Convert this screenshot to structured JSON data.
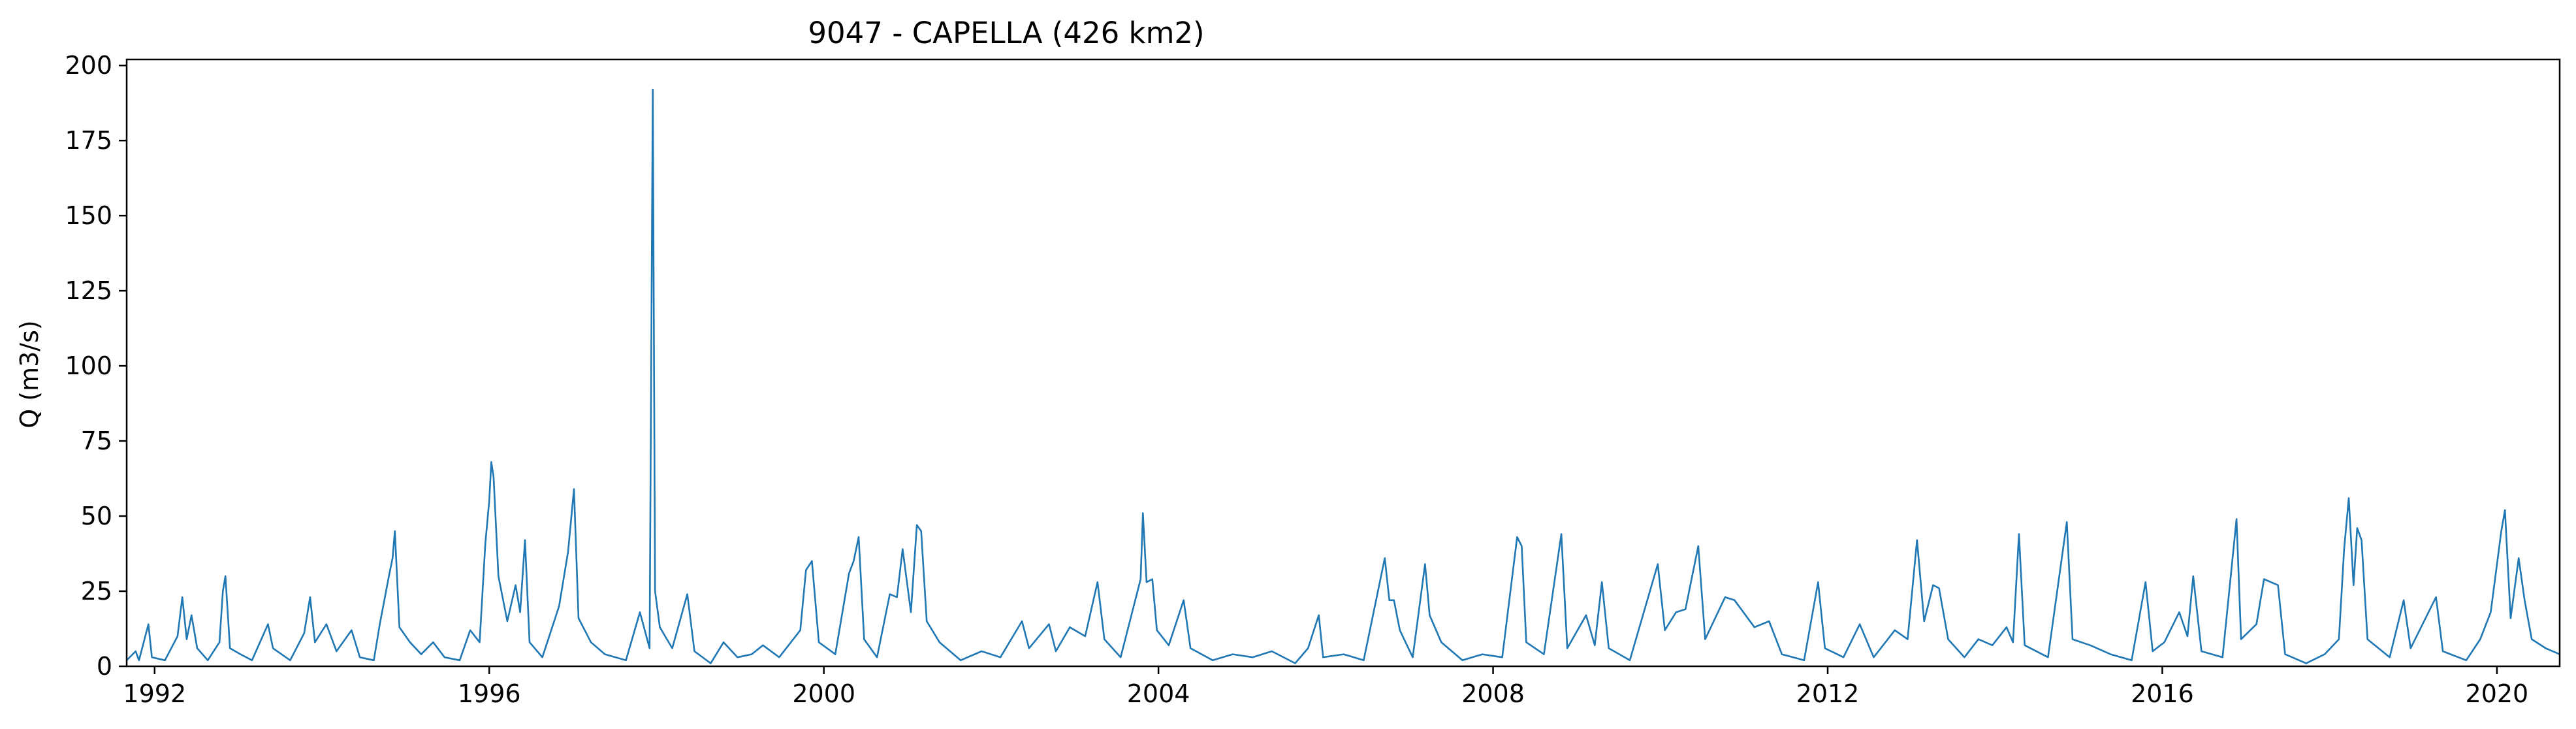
{
  "chart_data": {
    "type": "line",
    "title": "9047 - CAPELLA (426 km2)",
    "xlabel": "",
    "ylabel": "Q (m3/s)",
    "xlim": [
      "1991-09-01",
      "2020-10-01"
    ],
    "ylim": [
      0,
      202
    ],
    "x_ticks": [
      "1992",
      "1996",
      "2000",
      "2004",
      "2008",
      "2012",
      "2016",
      "2020"
    ],
    "y_ticks": [
      "0",
      "25",
      "50",
      "75",
      "100",
      "125",
      "150",
      "175",
      "200"
    ],
    "grid": false,
    "legend": "none",
    "series_color": "#1f77b4",
    "series": [
      {
        "values_note_free": true,
        "points": [
          [
            "1991-09-01",
            2
          ],
          [
            "1991-10-10",
            5
          ],
          [
            "1991-10-25",
            2
          ],
          [
            "1991-12-05",
            14
          ],
          [
            "1991-12-20",
            3
          ],
          [
            "1992-02-15",
            2
          ],
          [
            "1992-04-10",
            10
          ],
          [
            "1992-05-01",
            23
          ],
          [
            "1992-05-20",
            9
          ],
          [
            "1992-06-10",
            17
          ],
          [
            "1992-07-05",
            6
          ],
          [
            "1992-08-20",
            2
          ],
          [
            "1992-10-10",
            8
          ],
          [
            "1992-10-25",
            25
          ],
          [
            "1992-11-05",
            30
          ],
          [
            "1992-11-25",
            6
          ],
          [
            "1993-01-10",
            4
          ],
          [
            "1993-03-01",
            2
          ],
          [
            "1993-05-10",
            14
          ],
          [
            "1993-06-01",
            6
          ],
          [
            "1993-08-15",
            2
          ],
          [
            "1993-10-15",
            11
          ],
          [
            "1993-11-10",
            23
          ],
          [
            "1993-12-01",
            8
          ],
          [
            "1994-01-20",
            14
          ],
          [
            "1994-03-05",
            5
          ],
          [
            "1994-05-10",
            12
          ],
          [
            "1994-06-15",
            3
          ],
          [
            "1994-08-15",
            2
          ],
          [
            "1994-09-10",
            14
          ],
          [
            "1994-10-20",
            30
          ],
          [
            "1994-11-05",
            36
          ],
          [
            "1994-11-15",
            45
          ],
          [
            "1994-12-05",
            13
          ],
          [
            "1995-01-20",
            8
          ],
          [
            "1995-03-10",
            4
          ],
          [
            "1995-05-01",
            8
          ],
          [
            "1995-06-20",
            3
          ],
          [
            "1995-08-25",
            2
          ],
          [
            "1995-10-10",
            12
          ],
          [
            "1995-11-20",
            8
          ],
          [
            "1995-12-15",
            41
          ],
          [
            "1996-01-01",
            55
          ],
          [
            "1996-01-10",
            68
          ],
          [
            "1996-01-20",
            63
          ],
          [
            "1996-02-10",
            30
          ],
          [
            "1996-03-20",
            15
          ],
          [
            "1996-04-25",
            27
          ],
          [
            "1996-05-15",
            18
          ],
          [
            "1996-06-05",
            42
          ],
          [
            "1996-06-25",
            8
          ],
          [
            "1996-08-20",
            3
          ],
          [
            "1996-11-01",
            20
          ],
          [
            "1996-12-10",
            38
          ],
          [
            "1997-01-05",
            59
          ],
          [
            "1997-01-25",
            16
          ],
          [
            "1997-03-20",
            8
          ],
          [
            "1997-05-20",
            4
          ],
          [
            "1997-08-20",
            2
          ],
          [
            "1997-10-20",
            18
          ],
          [
            "1997-12-01",
            6
          ],
          [
            "1997-12-15",
            192
          ],
          [
            "1997-12-25",
            25
          ],
          [
            "1998-01-15",
            13
          ],
          [
            "1998-03-10",
            6
          ],
          [
            "1998-05-15",
            24
          ],
          [
            "1998-06-15",
            5
          ],
          [
            "1998-08-25",
            1
          ],
          [
            "1998-10-20",
            8
          ],
          [
            "1998-12-20",
            3
          ],
          [
            "1999-02-20",
            4
          ],
          [
            "1999-04-10",
            7
          ],
          [
            "1999-06-20",
            3
          ],
          [
            "1999-09-20",
            12
          ],
          [
            "1999-10-15",
            32
          ],
          [
            "1999-11-10",
            35
          ],
          [
            "1999-12-10",
            8
          ],
          [
            "2000-02-20",
            4
          ],
          [
            "2000-04-20",
            31
          ],
          [
            "2000-05-10",
            35
          ],
          [
            "2000-06-01",
            43
          ],
          [
            "2000-06-25",
            9
          ],
          [
            "2000-08-20",
            3
          ],
          [
            "2000-10-15",
            24
          ],
          [
            "2000-11-15",
            23
          ],
          [
            "2000-12-10",
            39
          ],
          [
            "2001-01-15",
            18
          ],
          [
            "2001-02-10",
            47
          ],
          [
            "2001-03-01",
            45
          ],
          [
            "2001-03-25",
            15
          ],
          [
            "2001-05-20",
            8
          ],
          [
            "2001-08-20",
            2
          ],
          [
            "2001-11-20",
            5
          ],
          [
            "2002-02-10",
            3
          ],
          [
            "2002-05-15",
            15
          ],
          [
            "2002-06-15",
            6
          ],
          [
            "2002-09-10",
            14
          ],
          [
            "2002-10-10",
            5
          ],
          [
            "2002-12-10",
            13
          ],
          [
            "2003-02-15",
            10
          ],
          [
            "2003-04-10",
            28
          ],
          [
            "2003-05-10",
            9
          ],
          [
            "2003-07-20",
            3
          ],
          [
            "2003-10-15",
            29
          ],
          [
            "2003-10-25",
            51
          ],
          [
            "2003-11-10",
            28
          ],
          [
            "2003-12-05",
            29
          ],
          [
            "2003-12-25",
            12
          ],
          [
            "2004-02-15",
            7
          ],
          [
            "2004-04-20",
            22
          ],
          [
            "2004-05-20",
            6
          ],
          [
            "2004-08-25",
            2
          ],
          [
            "2004-11-20",
            4
          ],
          [
            "2005-02-15",
            3
          ],
          [
            "2005-05-10",
            5
          ],
          [
            "2005-08-20",
            1
          ],
          [
            "2005-10-15",
            6
          ],
          [
            "2005-12-01",
            17
          ],
          [
            "2005-12-20",
            3
          ],
          [
            "2006-03-20",
            4
          ],
          [
            "2006-06-15",
            2
          ],
          [
            "2006-09-15",
            36
          ],
          [
            "2006-10-05",
            22
          ],
          [
            "2006-10-25",
            22
          ],
          [
            "2006-11-20",
            12
          ],
          [
            "2007-01-15",
            3
          ],
          [
            "2007-03-10",
            34
          ],
          [
            "2007-03-30",
            17
          ],
          [
            "2007-05-20",
            8
          ],
          [
            "2007-08-20",
            2
          ],
          [
            "2007-11-15",
            4
          ],
          [
            "2008-02-10",
            3
          ],
          [
            "2008-04-15",
            43
          ],
          [
            "2008-05-05",
            40
          ],
          [
            "2008-05-25",
            8
          ],
          [
            "2008-08-10",
            4
          ],
          [
            "2008-10-25",
            44
          ],
          [
            "2008-11-20",
            6
          ],
          [
            "2009-02-10",
            17
          ],
          [
            "2009-03-20",
            7
          ],
          [
            "2009-04-20",
            28
          ],
          [
            "2009-05-20",
            6
          ],
          [
            "2009-08-20",
            2
          ],
          [
            "2009-12-20",
            34
          ],
          [
            "2010-01-20",
            12
          ],
          [
            "2010-03-10",
            18
          ],
          [
            "2010-04-20",
            19
          ],
          [
            "2010-06-15",
            40
          ],
          [
            "2010-07-15",
            9
          ],
          [
            "2010-10-10",
            23
          ],
          [
            "2010-11-20",
            22
          ],
          [
            "2011-02-15",
            13
          ],
          [
            "2011-04-20",
            15
          ],
          [
            "2011-06-15",
            4
          ],
          [
            "2011-09-20",
            2
          ],
          [
            "2011-11-20",
            28
          ],
          [
            "2011-12-20",
            6
          ],
          [
            "2012-03-10",
            3
          ],
          [
            "2012-05-20",
            14
          ],
          [
            "2012-07-20",
            3
          ],
          [
            "2012-10-20",
            12
          ],
          [
            "2012-12-15",
            9
          ],
          [
            "2013-01-25",
            42
          ],
          [
            "2013-02-25",
            15
          ],
          [
            "2013-04-05",
            27
          ],
          [
            "2013-05-01",
            26
          ],
          [
            "2013-06-10",
            9
          ],
          [
            "2013-08-20",
            3
          ],
          [
            "2013-10-20",
            9
          ],
          [
            "2013-12-20",
            7
          ],
          [
            "2014-02-20",
            13
          ],
          [
            "2014-03-20",
            8
          ],
          [
            "2014-04-15",
            44
          ],
          [
            "2014-05-10",
            7
          ],
          [
            "2014-08-20",
            3
          ],
          [
            "2014-11-10",
            48
          ],
          [
            "2014-12-05",
            9
          ],
          [
            "2015-02-20",
            7
          ],
          [
            "2015-05-20",
            4
          ],
          [
            "2015-08-20",
            2
          ],
          [
            "2015-10-20",
            28
          ],
          [
            "2015-11-20",
            5
          ],
          [
            "2016-01-10",
            8
          ],
          [
            "2016-03-15",
            18
          ],
          [
            "2016-04-20",
            10
          ],
          [
            "2016-05-15",
            30
          ],
          [
            "2016-06-20",
            5
          ],
          [
            "2016-09-20",
            3
          ],
          [
            "2016-11-20",
            49
          ],
          [
            "2016-12-10",
            9
          ],
          [
            "2017-02-15",
            14
          ],
          [
            "2017-03-20",
            29
          ],
          [
            "2017-05-20",
            27
          ],
          [
            "2017-06-20",
            4
          ],
          [
            "2017-09-20",
            1
          ],
          [
            "2017-12-10",
            4
          ],
          [
            "2018-02-10",
            9
          ],
          [
            "2018-03-05",
            39
          ],
          [
            "2018-03-25",
            56
          ],
          [
            "2018-04-15",
            27
          ],
          [
            "2018-05-01",
            46
          ],
          [
            "2018-05-20",
            42
          ],
          [
            "2018-06-15",
            9
          ],
          [
            "2018-09-20",
            3
          ],
          [
            "2018-11-20",
            22
          ],
          [
            "2018-12-20",
            6
          ],
          [
            "2019-04-10",
            23
          ],
          [
            "2019-05-10",
            5
          ],
          [
            "2019-08-20",
            2
          ],
          [
            "2019-10-20",
            9
          ],
          [
            "2019-12-05",
            18
          ],
          [
            "2020-01-20",
            45
          ],
          [
            "2020-02-05",
            52
          ],
          [
            "2020-03-01",
            16
          ],
          [
            "2020-04-05",
            36
          ],
          [
            "2020-05-01",
            22
          ],
          [
            "2020-06-01",
            9
          ],
          [
            "2020-08-01",
            6
          ],
          [
            "2020-10-01",
            4
          ]
        ]
      }
    ]
  }
}
